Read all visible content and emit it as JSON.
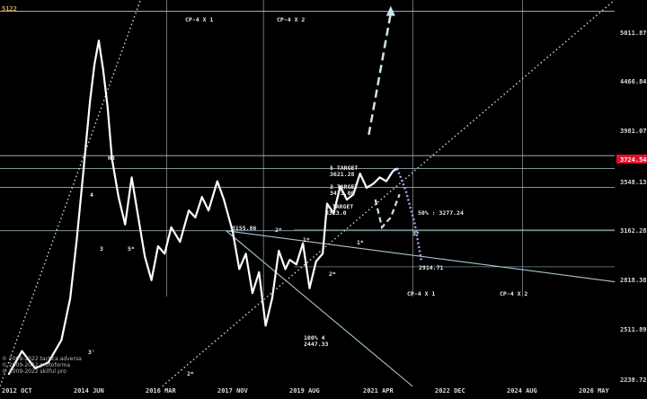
{
  "chart_data": {
    "type": "line",
    "top_left_label": "5122",
    "y_ticks": [
      "5011.87",
      "4466.84",
      "3981.07",
      "3548.13",
      "3162.28",
      "2818.38",
      "2511.89",
      "2238.72"
    ],
    "current_price_badge": "3724.54",
    "x_ticks": [
      "2012 OCT",
      "2014 JUN",
      "2016 MAR",
      "2017 NOV",
      "2019 AUG",
      "2021 APR",
      "2022 DEC",
      "2024 AUG",
      "2026 MAY"
    ],
    "annotations": {
      "cp4x1_top": "CP-4 X 1",
      "cp4x2_top": "CP-4 X 2",
      "cp4x1_bottom": "CP-4 X 1",
      "cp4x2_bottom": "CP-4 X 2",
      "price_3155": "3155.86",
      "target5_a": "5 TARGET",
      "target5_b": "3621.28",
      "target3_a": "3 TARGET",
      "target3_b": "3473.00",
      "target1_a": "1 TARGET",
      "target1_b": "3323.0",
      "fifty_pct": "50% : 3277.24",
      "low_2914": "2914.71",
      "hundred_pct_a": "100%  4",
      "hundred_pct_b": "2447.33",
      "wave_3_right": "3*",
      "wave_1_right": "1*",
      "wave_2_right": "2*",
      "wave_5_left": "5*",
      "wave_3_left": "3",
      "wave_4_left": "4",
      "wave_2_left": "2*",
      "wave_1_left": "1*",
      "wave_2_bottom": "2*",
      "wave_3_prime": "3'",
      "wave_HR": "HR"
    },
    "copyright": [
      "© 2009-2022 tactica adversa",
      "© 2009-2022 protoforma",
      "© 2009-2022 skilful pro"
    ],
    "series": [
      {
        "values": [
          [
            2012.8,
            2300
          ],
          [
            2013.1,
            2420
          ],
          [
            2013.4,
            2330
          ],
          [
            2013.7,
            2360
          ],
          [
            2014.0,
            2480
          ],
          [
            2014.2,
            2720
          ],
          [
            2014.35,
            3100
          ],
          [
            2014.5,
            3600
          ],
          [
            2014.65,
            4200
          ],
          [
            2014.75,
            4550
          ],
          [
            2014.85,
            4800
          ],
          [
            2014.95,
            4500
          ],
          [
            2015.05,
            4150
          ],
          [
            2015.15,
            3700
          ],
          [
            2015.3,
            3400
          ],
          [
            2015.45,
            3200
          ],
          [
            2015.6,
            3550
          ],
          [
            2015.75,
            3250
          ],
          [
            2015.9,
            2980
          ],
          [
            2016.05,
            2830
          ],
          [
            2016.2,
            3050
          ],
          [
            2016.35,
            3000
          ],
          [
            2016.5,
            3180
          ],
          [
            2016.7,
            3080
          ],
          [
            2016.9,
            3300
          ],
          [
            2017.05,
            3250
          ],
          [
            2017.2,
            3400
          ],
          [
            2017.35,
            3300
          ],
          [
            2017.55,
            3520
          ],
          [
            2017.7,
            3380
          ],
          [
            2017.9,
            3150
          ],
          [
            2018.05,
            2900
          ],
          [
            2018.2,
            3000
          ],
          [
            2018.35,
            2750
          ],
          [
            2018.5,
            2880
          ],
          [
            2018.65,
            2560
          ],
          [
            2018.8,
            2720
          ],
          [
            2018.95,
            3020
          ],
          [
            2019.1,
            2900
          ],
          [
            2019.2,
            2960
          ],
          [
            2019.35,
            2930
          ],
          [
            2019.5,
            3070
          ],
          [
            2019.65,
            2780
          ],
          [
            2019.8,
            2950
          ],
          [
            2019.95,
            3000
          ],
          [
            2020.05,
            3350
          ],
          [
            2020.2,
            3280
          ],
          [
            2020.35,
            3480
          ],
          [
            2020.5,
            3380
          ],
          [
            2020.65,
            3420
          ],
          [
            2020.8,
            3580
          ],
          [
            2020.95,
            3470
          ],
          [
            2021.1,
            3500
          ],
          [
            2021.25,
            3550
          ],
          [
            2021.4,
            3520
          ],
          [
            2021.55,
            3600
          ],
          [
            2021.65,
            3620
          ]
        ]
      }
    ],
    "projection": [
      [
        2021.65,
        3620
      ],
      [
        2021.85,
        3440
      ],
      [
        2022.05,
        3200
      ],
      [
        2022.2,
        2950
      ]
    ],
    "dashed_path": [
      [
        2021.15,
        3380
      ],
      [
        2021.3,
        3180
      ],
      [
        2021.5,
        3250
      ],
      [
        2021.7,
        3420
      ]
    ],
    "horizontal_levels": [
      5122,
      3724.54,
      3621.28,
      3473.0,
      3155.86
    ],
    "xlim": [
      2012.6,
      2026.6
    ],
    "ylim": [
      2238.72,
      5250
    ],
    "y_scale": "log",
    "grid": false
  }
}
